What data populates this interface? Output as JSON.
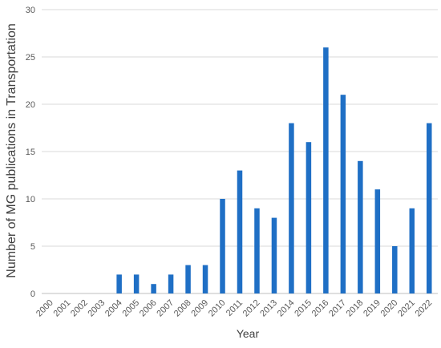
{
  "chart_data": {
    "type": "bar",
    "title": "",
    "xlabel": "Year",
    "ylabel": "Number of MG publications in Transportation",
    "categories": [
      "2000",
      "2001",
      "2002",
      "2003",
      "2004",
      "2005",
      "2006",
      "2007",
      "2008",
      "2009",
      "2010",
      "2011",
      "2012",
      "2013",
      "2014",
      "2015",
      "2016",
      "2017",
      "2018",
      "2019",
      "2020",
      "2021",
      "2022"
    ],
    "values": [
      0,
      0,
      0,
      0,
      2,
      2,
      1,
      2,
      3,
      3,
      10,
      13,
      9,
      8,
      18,
      16,
      26,
      21,
      14,
      11,
      5,
      9,
      18
    ],
    "ylim": [
      0,
      30
    ],
    "yticks": [
      0,
      5,
      10,
      15,
      20,
      25,
      30
    ],
    "grid": true,
    "legend": "none",
    "bar_color": "#1f6fc5"
  }
}
